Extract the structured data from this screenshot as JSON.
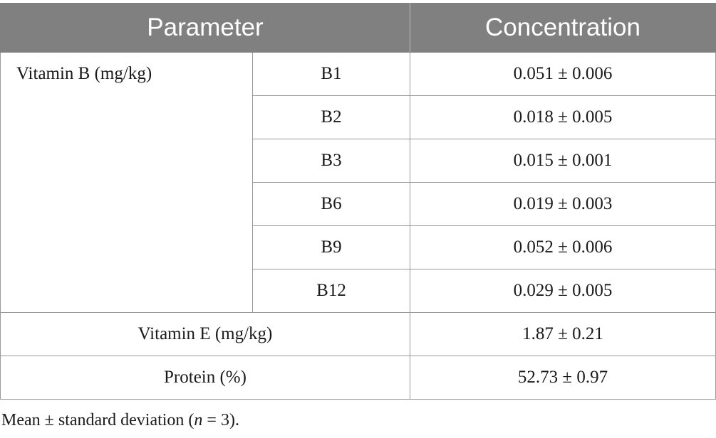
{
  "table": {
    "headers": {
      "parameter": "Parameter",
      "concentration": "Concentration"
    },
    "vitamin_b": {
      "label": "Vitamin B (mg/kg)",
      "rows": [
        {
          "name": "B1",
          "value": "0.051 ± 0.006"
        },
        {
          "name": "B2",
          "value": "0.018 ± 0.005"
        },
        {
          "name": "B3",
          "value": "0.015 ± 0.001"
        },
        {
          "name": "B6",
          "value": "0.019 ± 0.003"
        },
        {
          "name": "B9",
          "value": "0.052 ± 0.006"
        },
        {
          "name": "B12",
          "value": "0.029 ± 0.005"
        }
      ]
    },
    "vitamin_e": {
      "label": "Vitamin E (mg/kg)",
      "value": "1.87 ± 0.21"
    },
    "protein": {
      "label": "Protein (%)",
      "value": "52.73 ± 0.97"
    }
  },
  "footnote": {
    "prefix": "Mean ± standard deviation (",
    "var": "n",
    "suffix": " = 3)."
  }
}
